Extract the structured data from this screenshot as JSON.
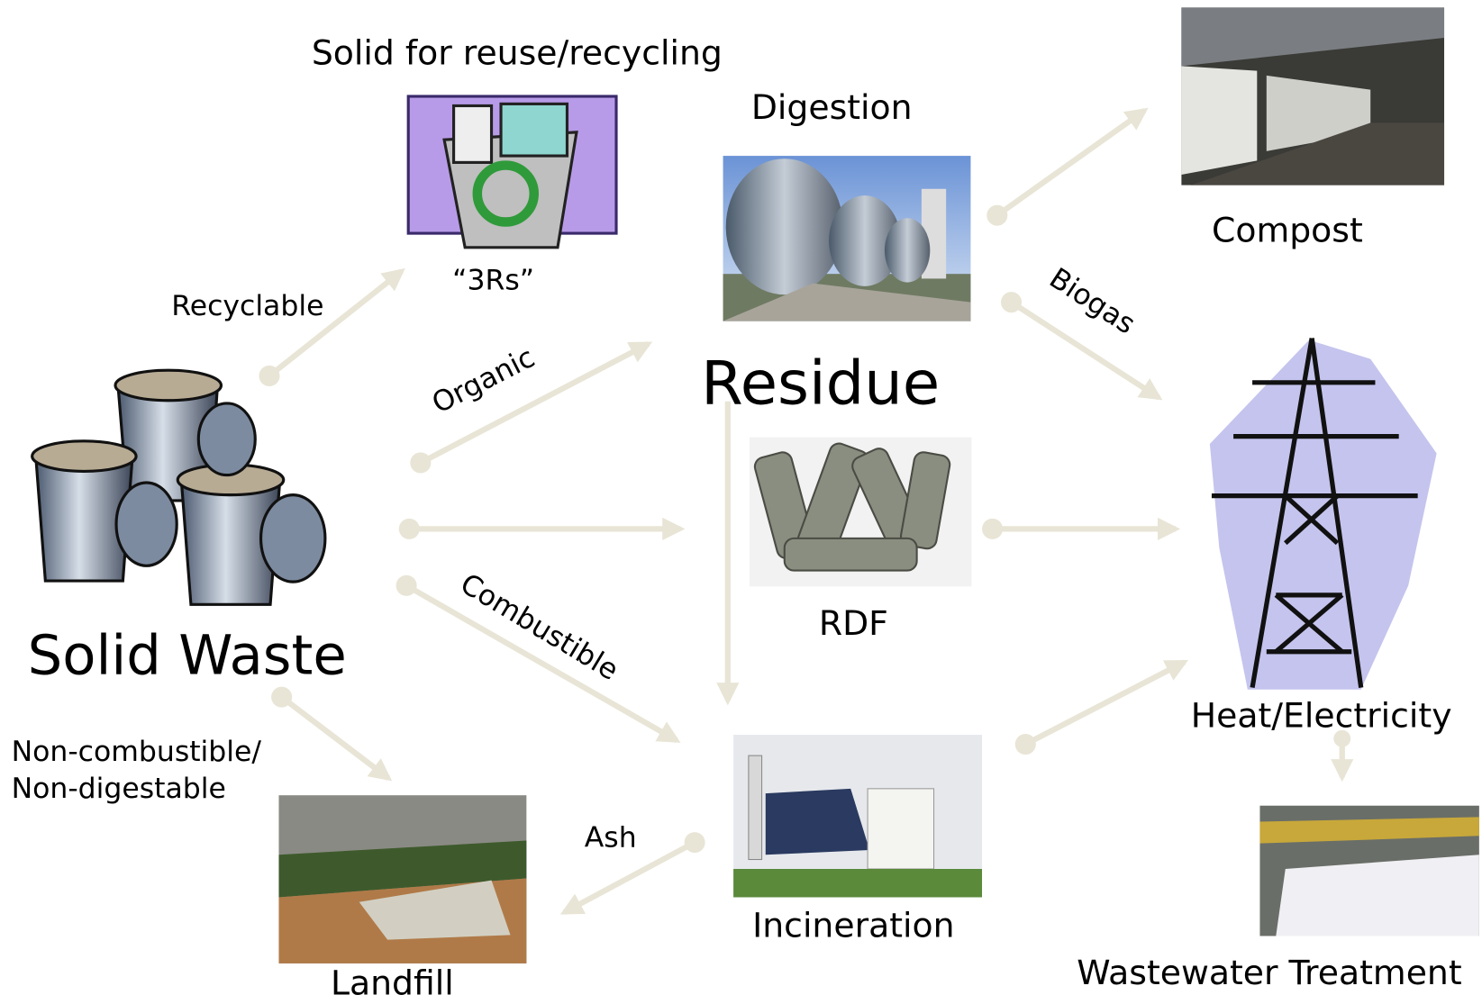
{
  "nodes": [
    {
      "label": "Solid Waste"
    },
    {
      "title": "Solid for reuse/recycling",
      "label": "“3Rs”"
    },
    {
      "label": "Digestion"
    },
    {
      "label": "Residue"
    },
    {
      "label": "RDF"
    },
    {
      "label": "Compost"
    },
    {
      "label": "Heat/Electricity"
    },
    {
      "label": "Incineration"
    },
    {
      "label": "Landfill"
    },
    {
      "label": "Wastewater Treatment"
    }
  ],
  "edges": [
    {
      "label": "Recyclable"
    },
    {
      "label": "Organic"
    },
    {
      "label": "Combustible"
    },
    {
      "label": "Biogas"
    },
    {
      "label": [
        "Non-combustible/",
        "Non-digestable"
      ]
    },
    {
      "label": "Ash"
    }
  ]
}
